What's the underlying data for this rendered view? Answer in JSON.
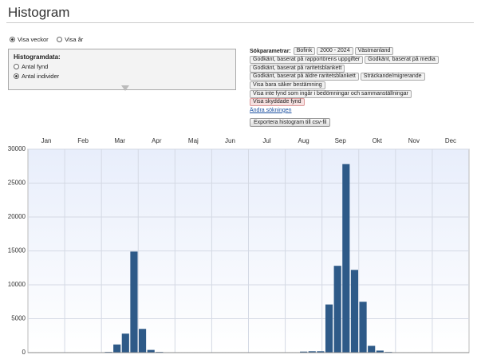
{
  "header": {
    "title": "Histogram"
  },
  "view_options": [
    "Visa veckor",
    "Visa år"
  ],
  "panel": {
    "title": "Histogramdata:",
    "options": [
      "Antal fynd",
      "Antal individer"
    ]
  },
  "search_params": {
    "label": "Sökparametrar:",
    "rows": [
      [
        "Bofink",
        "2000 - 2024",
        "Västmanland"
      ],
      [
        "Godkänt, baserat på rapportörens uppgifter",
        "Godkänt, baserat på media"
      ],
      [
        "Godkänt, baserat på raritetsblankett"
      ],
      [
        "Godkänt, baserat på äldre raritetsblankett",
        "Sträckande/migrerande"
      ],
      [
        "Visa bara säker bestämning"
      ],
      [
        "Visa inte fynd som ingår i bedömningar och sammanställningar"
      ],
      [
        "Visa skyddade fynd"
      ]
    ],
    "link": "Ändra sökningen",
    "button": "Exportera histogram till csv-fil"
  },
  "chart_data": {
    "type": "bar",
    "x_labels": [
      "Jan",
      "Feb",
      "Mar",
      "Apr",
      "Maj",
      "Jun",
      "Jul",
      "Aug",
      "Sep",
      "Okt",
      "Nov",
      "Dec"
    ],
    "values": [
      0,
      0,
      0,
      0,
      0,
      0,
      0,
      0,
      0,
      100,
      1200,
      2800,
      14900,
      3500,
      400,
      100,
      0,
      0,
      0,
      0,
      0,
      0,
      0,
      0,
      0,
      0,
      0,
      0,
      0,
      0,
      0,
      0,
      150,
      200,
      200,
      7100,
      12800,
      27800,
      12200,
      7500,
      1000,
      300,
      100,
      0,
      0,
      0,
      0,
      0,
      0,
      0,
      0,
      0
    ],
    "color": "#2e5a88",
    "ylim": [
      0,
      30000
    ],
    "yticks": [
      0,
      5000,
      10000,
      15000,
      20000,
      25000,
      30000
    ],
    "grid": true
  }
}
